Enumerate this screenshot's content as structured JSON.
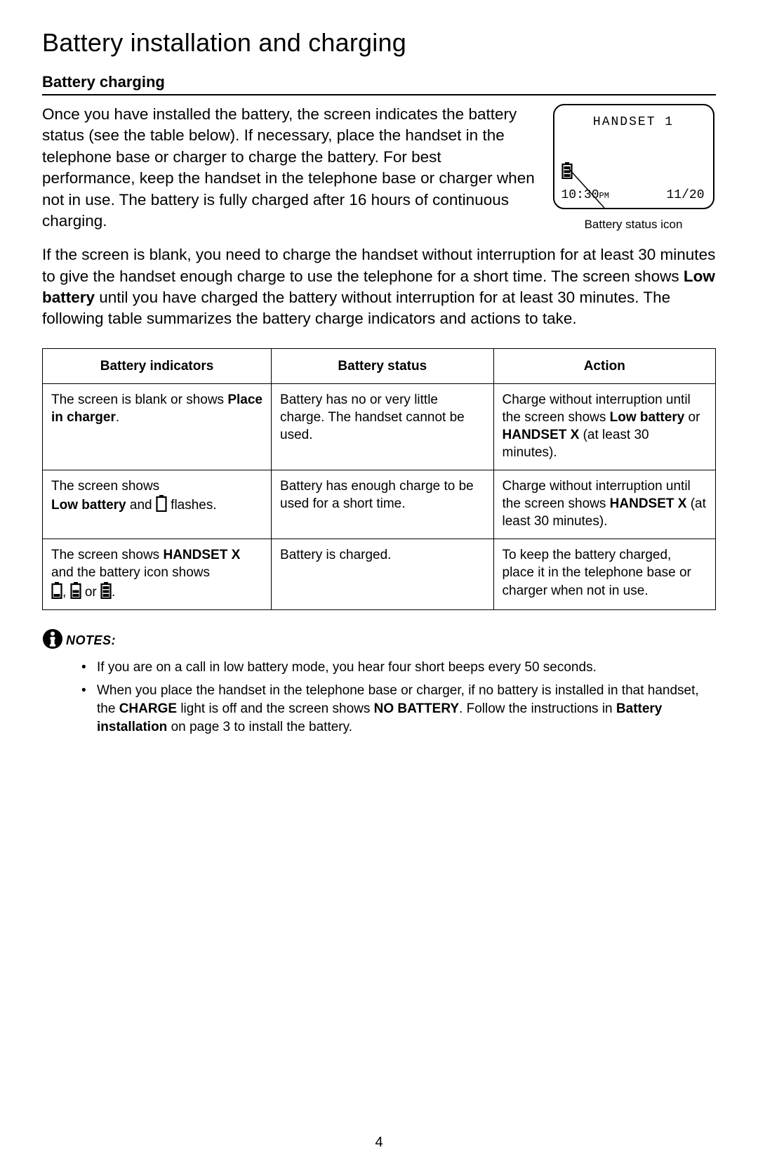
{
  "page": {
    "title": "Battery installation and charging",
    "section_heading": "Battery charging",
    "page_number": "4"
  },
  "intro": {
    "p1": "Once you have installed the battery, the screen indicates the battery status (see the table below). If necessary, place the handset in the telephone base or charger to charge the battery. For best performance, keep the handset in the telephone base or charger when not in use. The battery is fully charged after 16 hours of continuous charging.",
    "p2_a": "If the screen is blank, you need to charge the handset without interruption for at least 30 minutes to give the handset enough charge to use the telephone for a short time. The screen shows ",
    "p2_bold": "Low battery",
    "p2_b": " until you have charged the battery without interruption for at least 30 minutes. The following table summarizes the battery charge indicators and actions to take."
  },
  "screen": {
    "title": "HANDSET 1",
    "time": "10:30",
    "time_suffix": "PM",
    "date": "11/20",
    "caption": "Battery status icon"
  },
  "table": {
    "headers": {
      "c1": "Battery indicators",
      "c2": "Battery status",
      "c3": "Action"
    },
    "r1": {
      "c1_a": "The screen is blank or shows ",
      "c1_bold": "Place in charger",
      "c1_b": ".",
      "c2": "Battery has no or very little charge. The handset cannot be used.",
      "c3_a": "Charge without interruption until the screen shows ",
      "c3_b1": "Low battery",
      "c3_mid": " or ",
      "c3_b2": "HANDSET X",
      "c3_c": " (at least 30 minutes)."
    },
    "r2": {
      "c1_a": "The screen shows ",
      "c1_bold": "Low battery",
      "c1_b": " and ",
      "c1_c": " flashes.",
      "c2": "Battery has enough charge to be used for a short time.",
      "c3_a": "Charge without interruption until the screen shows ",
      "c3_bold": "HANDSET X",
      "c3_b": " (at least 30 minutes)."
    },
    "r3": {
      "c1_a": "The screen shows ",
      "c1_bold": "HANDSET X",
      "c1_b": " and the battery icon shows ",
      "c1_or": " or ",
      "c1_period": ".",
      "c2": "Battery is charged.",
      "c3": "To keep the battery charged, place it in the telephone base or charger when not in use."
    }
  },
  "notes": {
    "label": "NOTES:",
    "n1": "If you are on a call in low battery mode, you hear four short beeps every 50 seconds.",
    "n2_a": "When you place the handset in the telephone base or charger, if no battery is installed in that handset, the ",
    "n2_b1": "CHARGE",
    "n2_mid": " light is off and the screen shows ",
    "n2_b2": "NO BATTERY",
    "n2_c": ". Follow the instructions in ",
    "n2_b3": "Battery installation",
    "n2_d": " on page 3 to install the battery."
  },
  "icons": {
    "battery_empty_svg": "<svg class='batt-svg' width='16' height='24' viewBox='0 0 16 24'><rect x='5' y='0' width='6' height='3' fill='#000'/><rect x='1.5' y='3' width='13' height='20' fill='none' stroke='#000' stroke-width='2.2'/></svg>",
    "battery_1bar_svg": "<svg class='batt-svg' width='16' height='24' viewBox='0 0 16 24'><rect x='5' y='0' width='6' height='3' fill='#000'/><rect x='1.5' y='3' width='13' height='20' fill='none' stroke='#000' stroke-width='2.2'/><rect x='3.5' y='17' width='9' height='4' fill='#000'/></svg>",
    "battery_2bar_svg": "<svg class='batt-svg' width='16' height='24' viewBox='0 0 16 24'><rect x='5' y='0' width='6' height='3' fill='#000'/><rect x='1.5' y='3' width='13' height='20' fill='none' stroke='#000' stroke-width='2.2'/><rect x='3.5' y='17' width='9' height='4' fill='#000'/><rect x='3.5' y='11.5' width='9' height='4' fill='#000'/></svg>",
    "battery_3bar_svg": "<svg class='batt-svg' width='16' height='24' viewBox='0 0 16 24'><rect x='5' y='0' width='6' height='3' fill='#000'/><rect x='1.5' y='3' width='13' height='20' fill='none' stroke='#000' stroke-width='2.2'/><rect x='3.5' y='17' width='9' height='4' fill='#000'/><rect x='3.5' y='11.5' width='9' height='4' fill='#000'/><rect x='3.5' y='6' width='9' height='4' fill='#000'/></svg>",
    "info_icon_svg": "<svg class='info-icon-svg' viewBox='0 0 32 32'><circle cx='16' cy='16' r='15' fill='#000'/><circle cx='16' cy='8' r='3.2' fill='#fff'/><rect x='12.2' y='13' width='7.6' height='4' rx='1' fill='#fff'/><rect x='13.2' y='13' width='5.6' height='13' fill='#fff'/><rect x='11.5' y='24' width='9' height='3.5' rx='1' fill='#fff'/></svg>"
  }
}
